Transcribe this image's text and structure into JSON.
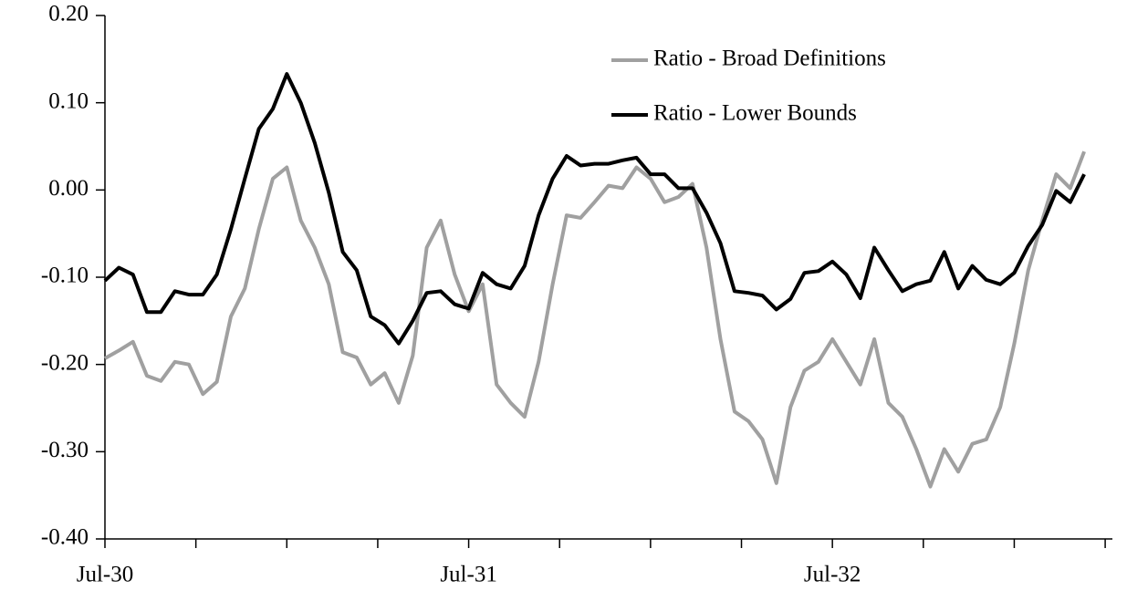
{
  "chart_data": {
    "type": "line",
    "categories": [
      "Jul-30",
      null,
      null,
      null,
      null,
      null,
      null,
      null,
      null,
      null,
      null,
      null,
      null,
      null,
      null,
      null,
      null,
      null,
      null,
      null,
      null,
      null,
      null,
      null,
      null,
      null,
      "Jul-31",
      null,
      null,
      null,
      null,
      null,
      null,
      null,
      null,
      null,
      null,
      null,
      null,
      null,
      null,
      null,
      null,
      null,
      null,
      null,
      null,
      null,
      null,
      null,
      null,
      null,
      "Jul-32",
      null,
      null,
      null,
      null,
      null,
      null,
      null,
      null,
      null,
      null,
      null,
      null,
      null,
      null,
      null,
      null,
      null,
      null
    ],
    "series": [
      {
        "name": "Ratio - Broad Definitions",
        "color": "#a0a0a0",
        "values": [
          -0.193,
          -0.184,
          -0.174,
          -0.213,
          -0.219,
          -0.197,
          -0.2,
          -0.234,
          -0.22,
          -0.145,
          -0.113,
          -0.045,
          0.013,
          0.026,
          -0.035,
          -0.066,
          -0.108,
          -0.186,
          -0.192,
          -0.223,
          -0.21,
          -0.244,
          -0.19,
          -0.066,
          -0.035,
          -0.097,
          -0.139,
          -0.108,
          -0.223,
          -0.244,
          -0.26,
          -0.197,
          -0.108,
          -0.029,
          -0.032,
          -0.014,
          0.005,
          0.002,
          0.026,
          0.013,
          -0.014,
          -0.008,
          0.007,
          -0.066,
          -0.171,
          -0.254,
          -0.265,
          -0.286,
          -0.336,
          -0.249,
          -0.207,
          -0.197,
          -0.171,
          -0.197,
          -0.223,
          -0.171,
          -0.244,
          -0.26,
          -0.297,
          -0.34,
          -0.297,
          -0.323,
          -0.291,
          -0.286,
          -0.249,
          -0.176,
          -0.092,
          -0.035,
          0.018,
          0.002,
          0.044
        ]
      },
      {
        "name": "Ratio - Lower Bounds",
        "color": "#000000",
        "values": [
          -0.104,
          -0.089,
          -0.097,
          -0.14,
          -0.14,
          -0.116,
          -0.12,
          -0.12,
          -0.097,
          -0.045,
          0.013,
          0.07,
          0.093,
          0.133,
          0.1,
          0.054,
          -0.003,
          -0.071,
          -0.092,
          -0.145,
          -0.155,
          -0.176,
          -0.15,
          -0.118,
          -0.116,
          -0.131,
          -0.136,
          -0.095,
          -0.108,
          -0.113,
          -0.087,
          -0.029,
          0.013,
          0.039,
          0.028,
          0.03,
          0.03,
          0.034,
          0.037,
          0.018,
          0.018,
          0.002,
          0.002,
          -0.026,
          -0.061,
          -0.116,
          -0.118,
          -0.121,
          -0.137,
          -0.125,
          -0.095,
          -0.093,
          -0.082,
          -0.097,
          -0.124,
          -0.066,
          -0.092,
          -0.116,
          -0.108,
          -0.104,
          -0.071,
          -0.113,
          -0.087,
          -0.103,
          -0.108,
          -0.095,
          -0.064,
          -0.04,
          -0.001,
          -0.014,
          0.018
        ]
      }
    ],
    "ylim": [
      -0.4,
      0.2
    ],
    "yticks": [
      {
        "value": -0.4,
        "label": "-0.40"
      },
      {
        "value": -0.3,
        "label": "-0.30"
      },
      {
        "value": -0.2,
        "label": "-0.20"
      },
      {
        "value": -0.1,
        "label": "-0.10"
      },
      {
        "value": 0,
        "label": "0.00"
      },
      {
        "value": 0.1,
        "label": "0.10"
      },
      {
        "value": 0.2,
        "label": "0.20"
      }
    ],
    "legend": "upper-right"
  }
}
